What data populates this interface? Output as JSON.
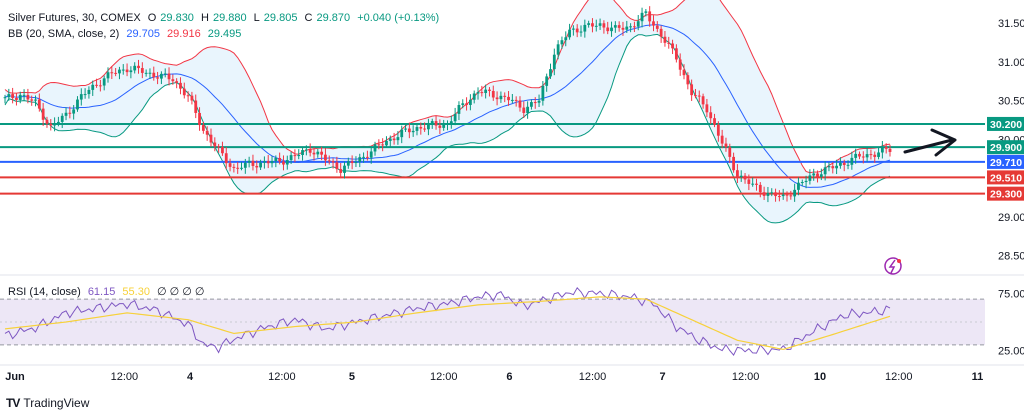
{
  "header": {
    "symbol": "Silver Futures, 30, COMEX",
    "o_label": "O",
    "o_val": "29.830",
    "h_label": "H",
    "h_val": "29.880",
    "l_label": "L",
    "l_val": "29.805",
    "c_label": "C",
    "c_val": "29.870",
    "change": "+0.040 (+0.13%)",
    "bb_label": "BB (20, SMA, close, 2)",
    "bb_mid": "29.705",
    "bb_up": "29.916",
    "bb_low": "29.495",
    "rsi_label": "RSI (14, close)",
    "rsi_val": "61.15",
    "rsi_ma": "55.30",
    "rsi_zeros": "∅ ∅ ∅ ∅"
  },
  "branding": {
    "logo": "TV",
    "name": "TradingView"
  },
  "colors": {
    "up": "#089981",
    "down": "#f23645",
    "bb_mid": "#2962ff",
    "bb_up": "#f23645",
    "bb_low": "#089981",
    "bb_fill": "#e3f2fd",
    "rsi": "#7e57c2",
    "rsi_ma": "#f7d13a",
    "rsi_band": "#ede7f6",
    "level_green": "#089981",
    "level_blue": "#2962ff",
    "level_red": "#e53935"
  },
  "chart_data": [
    {
      "type": "candlestick",
      "title": "Silver Futures, 30, COMEX",
      "y_ticks": [
        "31.500",
        "31.000",
        "30.500",
        "30.000",
        "29.500",
        "29.000",
        "28.500"
      ],
      "y_tick_values": [
        31.5,
        31.0,
        30.5,
        30.0,
        29.5,
        29.0,
        28.5
      ],
      "ylim": [
        28.25,
        31.8
      ],
      "x_ticks": [
        "Jun",
        "12:00",
        "4",
        "12:00",
        "5",
        "12:00",
        "6",
        "12:00",
        "7",
        "12:00",
        "10",
        "12:00",
        "11"
      ],
      "x_tick_fractions": [
        0.0,
        0.125,
        0.2,
        0.305,
        0.385,
        0.49,
        0.565,
        0.66,
        0.74,
        0.835,
        0.92,
        1.01,
        1.1
      ],
      "horizontal_levels": [
        {
          "label": "30.200",
          "value": 30.2,
          "color": "#089981"
        },
        {
          "label": "29.900",
          "value": 29.9,
          "color": "#089981"
        },
        {
          "label": "29.710",
          "value": 29.71,
          "color": "#2962ff"
        },
        {
          "label": "29.510",
          "value": 29.51,
          "color": "#e53935"
        },
        {
          "label": "29.300",
          "value": 29.3,
          "color": "#e53935"
        }
      ],
      "last_price": 29.87,
      "price_path": [
        [
          0,
          30.52
        ],
        [
          4,
          30.58
        ],
        [
          8,
          30.47
        ],
        [
          12,
          30.15
        ],
        [
          16,
          30.32
        ],
        [
          20,
          30.55
        ],
        [
          24,
          30.72
        ],
        [
          28,
          30.85
        ],
        [
          32,
          30.92
        ],
        [
          36,
          30.88
        ],
        [
          40,
          30.82
        ],
        [
          44,
          30.78
        ],
        [
          48,
          30.55
        ],
        [
          52,
          30.12
        ],
        [
          56,
          29.85
        ],
        [
          60,
          29.62
        ],
        [
          64,
          29.68
        ],
        [
          68,
          29.7
        ],
        [
          72,
          29.72
        ],
        [
          76,
          29.78
        ],
        [
          80,
          29.88
        ],
        [
          84,
          29.74
        ],
        [
          88,
          29.62
        ],
        [
          92,
          29.72
        ],
        [
          96,
          29.85
        ],
        [
          100,
          29.98
        ],
        [
          104,
          30.08
        ],
        [
          108,
          30.15
        ],
        [
          112,
          30.18
        ],
        [
          116,
          30.2
        ],
        [
          120,
          30.45
        ],
        [
          124,
          30.62
        ],
        [
          128,
          30.58
        ],
        [
          132,
          30.52
        ],
        [
          136,
          30.4
        ],
        [
          140,
          30.5
        ],
        [
          144,
          31.12
        ],
        [
          148,
          31.4
        ],
        [
          152,
          31.45
        ],
        [
          156,
          31.48
        ],
        [
          160,
          31.42
        ],
        [
          164,
          31.46
        ],
        [
          168,
          31.62
        ],
        [
          172,
          31.35
        ],
        [
          176,
          31.05
        ],
        [
          180,
          30.6
        ],
        [
          184,
          30.4
        ],
        [
          188,
          29.95
        ],
        [
          192,
          29.55
        ],
        [
          196,
          29.4
        ],
        [
          200,
          29.3
        ],
        [
          204,
          29.25
        ],
        [
          208,
          29.4
        ],
        [
          212,
          29.55
        ],
        [
          216,
          29.62
        ],
        [
          220,
          29.7
        ],
        [
          224,
          29.78
        ],
        [
          228,
          29.82
        ],
        [
          232,
          29.87
        ]
      ]
    },
    {
      "type": "line",
      "title": "RSI (14, close)",
      "y_ticks": [
        "75.00",
        "25.00"
      ],
      "y_tick_values": [
        75,
        25
      ],
      "ylim": [
        15,
        85
      ],
      "bands": [
        70,
        30
      ],
      "series": [
        {
          "name": "RSI",
          "values_path": [
            [
              0,
              38
            ],
            [
              8,
              45
            ],
            [
              16,
              58
            ],
            [
              24,
              62
            ],
            [
              32,
              66
            ],
            [
              40,
              60
            ],
            [
              48,
              48
            ],
            [
              52,
              30
            ],
            [
              56,
              28
            ],
            [
              60,
              35
            ],
            [
              68,
              45
            ],
            [
              76,
              52
            ],
            [
              84,
              44
            ],
            [
              92,
              50
            ],
            [
              100,
              56
            ],
            [
              108,
              62
            ],
            [
              116,
              66
            ],
            [
              124,
              72
            ],
            [
              130,
              74
            ],
            [
              136,
              64
            ],
            [
              142,
              70
            ],
            [
              148,
              76
            ],
            [
              156,
              75
            ],
            [
              164,
              72
            ],
            [
              170,
              66
            ],
            [
              176,
              46
            ],
            [
              182,
              34
            ],
            [
              188,
              26
            ],
            [
              196,
              25
            ],
            [
              204,
              26
            ],
            [
              212,
              42
            ],
            [
              220,
              56
            ],
            [
              226,
              58
            ],
            [
              232,
              61
            ]
          ]
        },
        {
          "name": "RSI-based MA",
          "values_path": [
            [
              0,
              44
            ],
            [
              16,
              50
            ],
            [
              32,
              58
            ],
            [
              48,
              52
            ],
            [
              60,
              40
            ],
            [
              76,
              46
            ],
            [
              92,
              50
            ],
            [
              108,
              58
            ],
            [
              124,
              65
            ],
            [
              140,
              68
            ],
            [
              156,
              72
            ],
            [
              168,
              70
            ],
            [
              180,
              52
            ],
            [
              192,
              34
            ],
            [
              204,
              26
            ],
            [
              216,
              38
            ],
            [
              232,
              55
            ]
          ]
        }
      ]
    }
  ]
}
